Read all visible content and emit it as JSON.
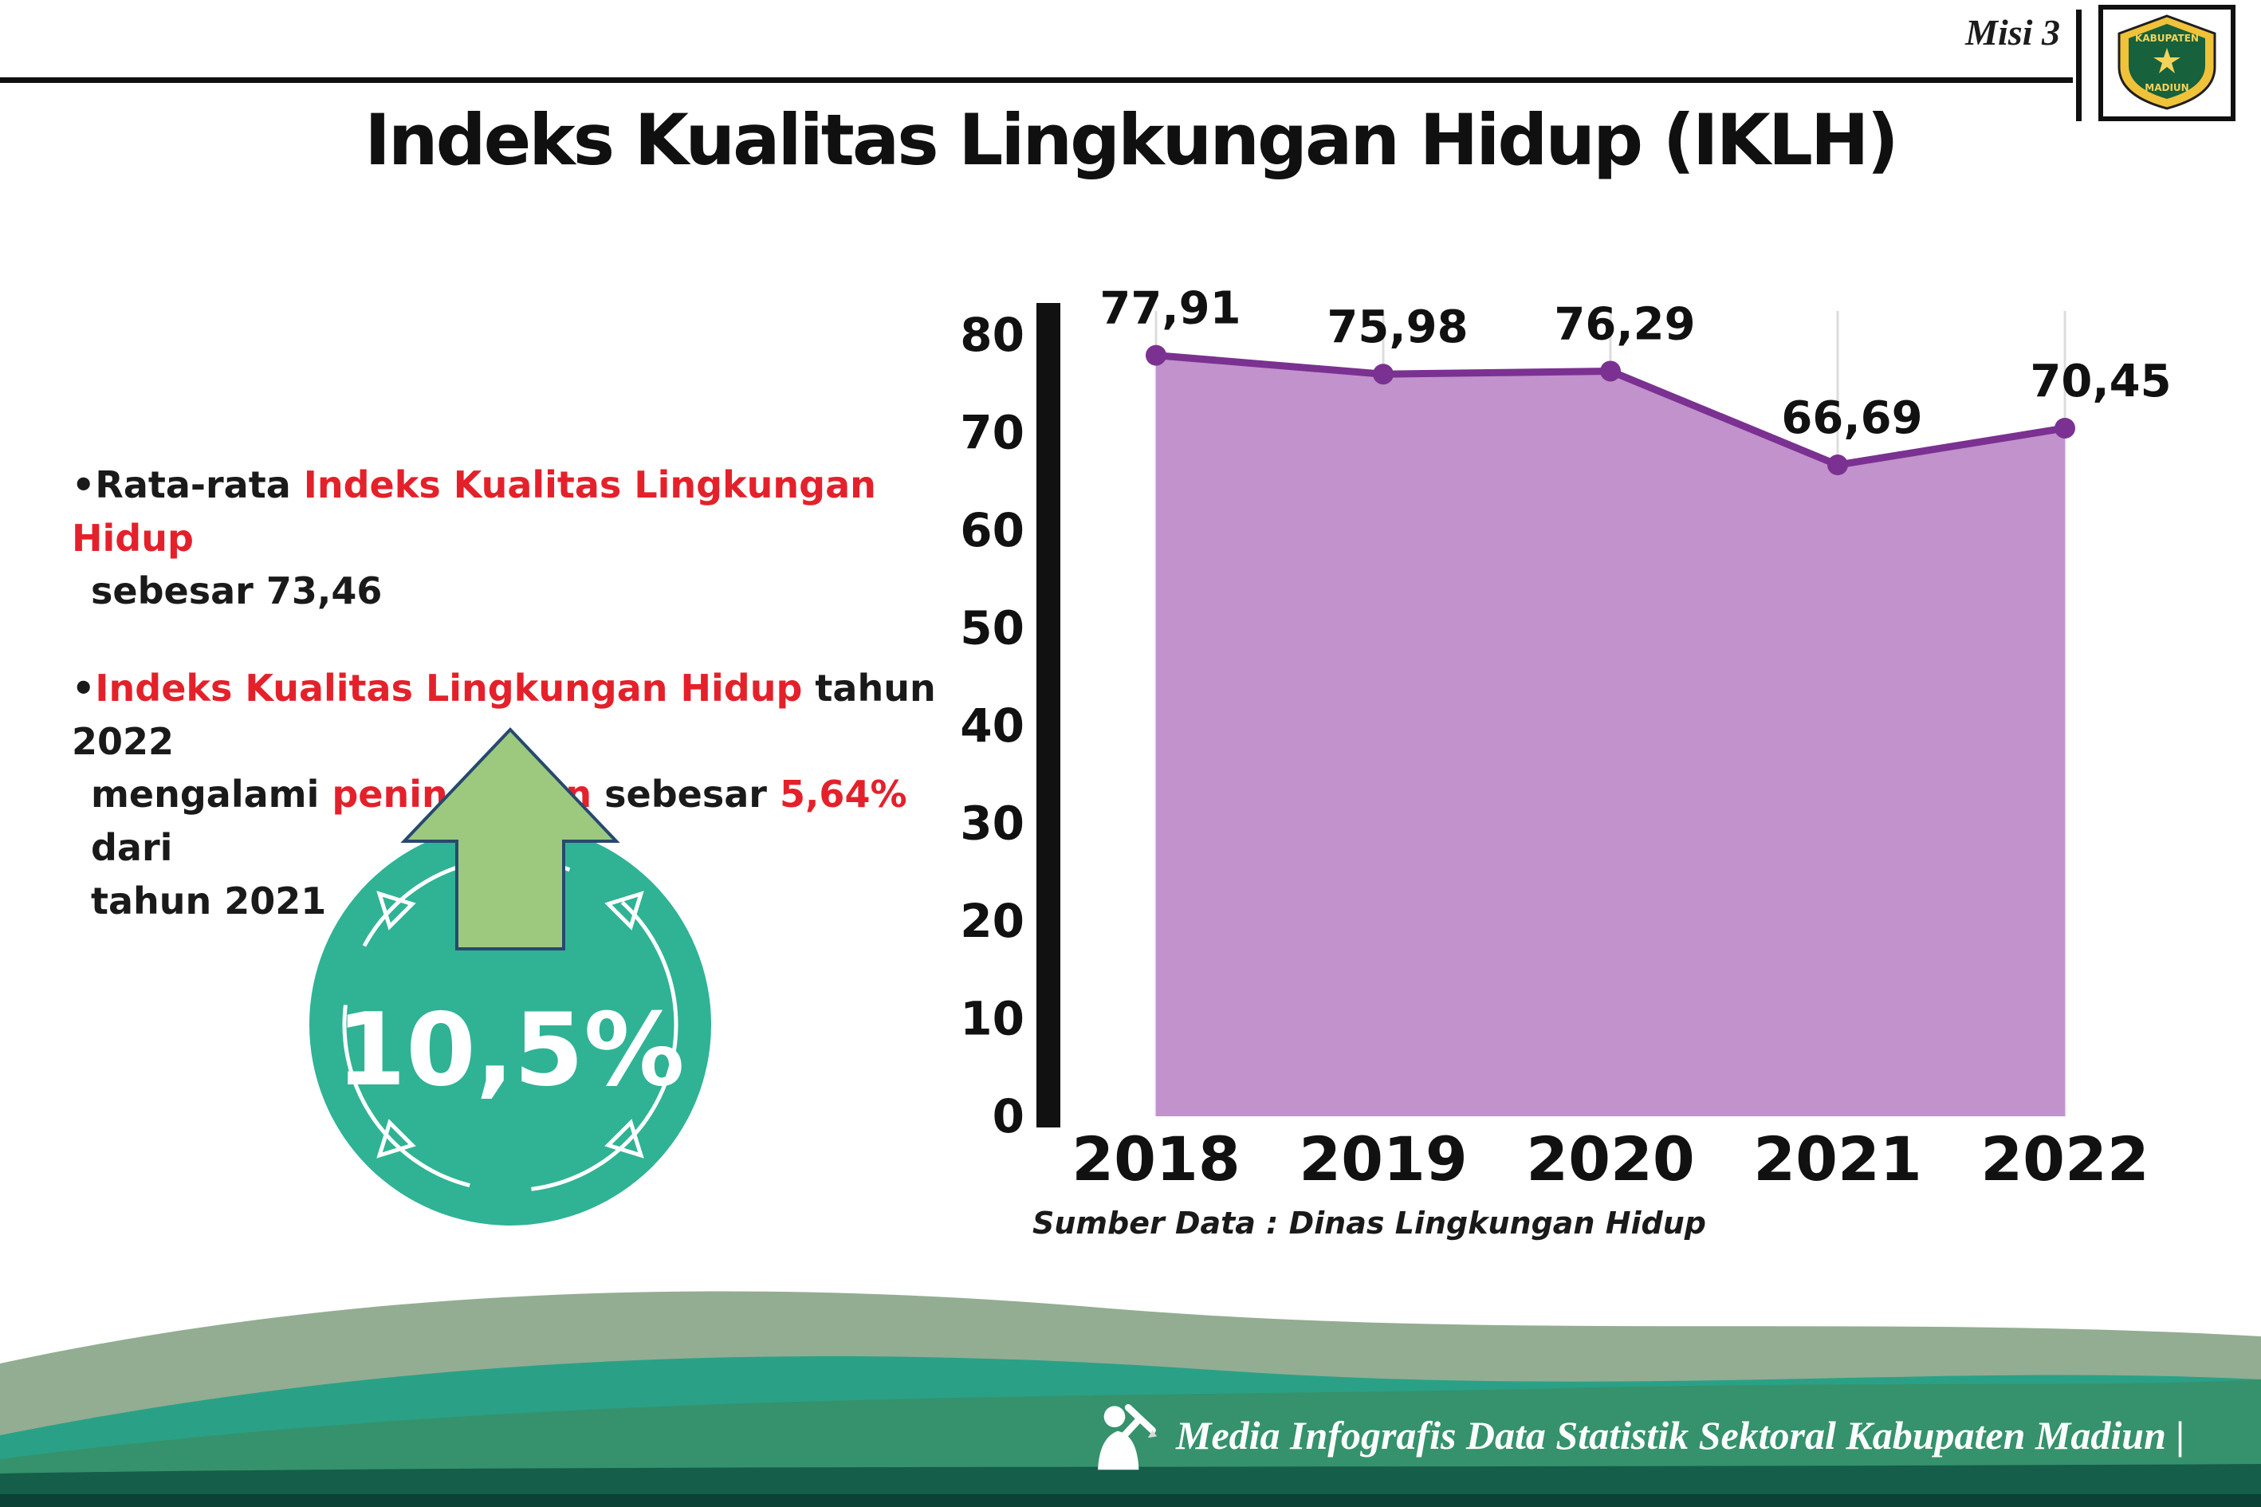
{
  "colors": {
    "red": "#e4212b",
    "ink": "#141414",
    "teal": "#2fb394",
    "arrow_green": "#9dc97f",
    "arrow_outline": "#27496e",
    "footer_sage": "#93ad92",
    "footer_teal": "#2aa186",
    "footer_green": "#35926c",
    "footer_dark": "#155e49",
    "footer_darker": "#0c4236"
  },
  "header": {
    "misi": "Misi 3",
    "title": "Indeks Kualitas Lingkungan Hidup (IKLH)"
  },
  "logo": {
    "top_text": "KABUPATEN",
    "bottom_text": "MADIUN"
  },
  "info": {
    "bullets": [
      {
        "lines": [
          [
            {
              "t": "•Rata-rata ",
              "c": "ink"
            },
            {
              "t": "Indeks Kualitas Lingkungan Hidup",
              "c": "red"
            }
          ],
          [
            {
              "t": "sebesar 73,46",
              "c": "ink"
            }
          ]
        ]
      },
      {
        "lines": [
          [
            {
              "t": "•",
              "c": "ink"
            },
            {
              "t": "Indeks Kualitas Lingkungan Hidup",
              "c": "red"
            },
            {
              "t": " tahun 2022",
              "c": "ink"
            }
          ],
          [
            {
              "t": "mengalami ",
              "c": "ink"
            },
            {
              "t": "peningkatan",
              "c": "red"
            },
            {
              "t": " sebesar ",
              "c": "ink"
            },
            {
              "t": "5,64%",
              "c": "red"
            },
            {
              "t": " dari",
              "c": "ink"
            }
          ],
          [
            {
              "t": "tahun 2021",
              "c": "ink"
            }
          ]
        ]
      }
    ],
    "badge_value": "10,5%"
  },
  "chart_data": {
    "type": "area",
    "title": "Indeks Kualitas Lingkungan Hidup (IKLH)",
    "categories": [
      "2018",
      "2019",
      "2020",
      "2021",
      "2022"
    ],
    "values": [
      77.91,
      75.98,
      76.29,
      66.69,
      70.45
    ],
    "point_labels": [
      "77,91",
      "75,98",
      "76,29",
      "66,69",
      "70,45"
    ],
    "xlabel": "",
    "ylabel": "",
    "ylim": [
      0,
      80
    ],
    "yticks": [
      0,
      10,
      20,
      30,
      40,
      50,
      60,
      70,
      80
    ],
    "grid": "vertical",
    "legend": "none",
    "line_color": "#7b3191",
    "fill_color": "#c192cb",
    "dot_color": "#7b3191",
    "source": "Sumber Data : Dinas Lingkungan Hidup"
  },
  "footer": {
    "credit": "Media Infografis Data Statistik Sektoral Kabupaten Madiun |"
  }
}
